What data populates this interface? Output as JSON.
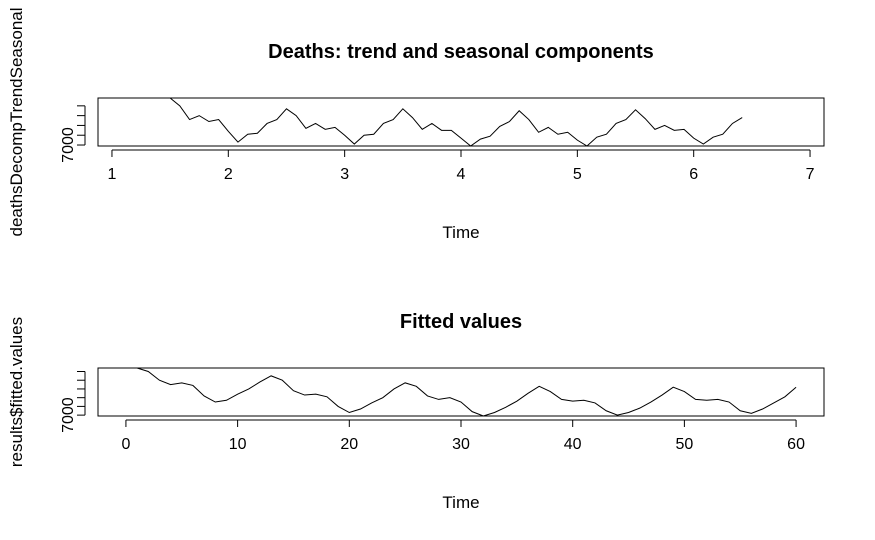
{
  "chart_data": [
    {
      "type": "line",
      "title": "Deaths: trend and seasonal components",
      "xlabel": "Time",
      "ylabel": "deathsDecompTrendSeasonal",
      "xlim": [
        0.88,
        7.12
      ],
      "ylim": [
        6950,
        9400
      ],
      "xticks": [
        1,
        2,
        3,
        4,
        5,
        6,
        7
      ],
      "xtick_labels": [
        "1",
        "2",
        "3",
        "4",
        "5",
        "6",
        "7"
      ],
      "yticks": [
        7000,
        7500,
        8000,
        8500,
        9000,
        9500
      ],
      "ytick_labels": [
        "7000",
        "",
        "",
        "",
        "",
        ""
      ],
      "series": [
        {
          "x": [
            1.5,
            1.583,
            1.667,
            1.75,
            1.833,
            1.917,
            2.0,
            2.083,
            2.167,
            2.25,
            2.333,
            2.417,
            2.5,
            2.583,
            2.667,
            2.75,
            2.833,
            2.917,
            3.0,
            3.083,
            3.167,
            3.25,
            3.333,
            3.417,
            3.5,
            3.583,
            3.667,
            3.75,
            3.833,
            3.917,
            4.0,
            4.083,
            4.167,
            4.25,
            4.333,
            4.417,
            4.5,
            4.583,
            4.667,
            4.75,
            4.833,
            4.917,
            5.0,
            5.083,
            5.167,
            5.25,
            5.333,
            5.417,
            5.5,
            5.583,
            5.667,
            5.75,
            5.833,
            5.917,
            6.0,
            6.083,
            6.167,
            6.25,
            6.333,
            6.417
          ],
          "values": [
            9400,
            9000,
            8300,
            8500,
            8200,
            8300,
            7700,
            7150,
            7550,
            7600,
            8100,
            8300,
            8850,
            8500,
            7850,
            8100,
            7800,
            7900,
            7500,
            7050,
            7500,
            7550,
            8100,
            8300,
            8850,
            8400,
            7800,
            8100,
            7750,
            7750,
            7350,
            6950,
            7300,
            7450,
            7950,
            8200,
            8750,
            8300,
            7650,
            7900,
            7550,
            7650,
            7250,
            6950,
            7400,
            7550,
            8100,
            8300,
            8800,
            8350,
            7800,
            8000,
            7750,
            7800,
            7350,
            7050,
            7400,
            7550,
            8100,
            8400
          ]
        }
      ]
    },
    {
      "type": "line",
      "title": "Fitted values",
      "xlabel": "Time",
      "ylabel": "results$fitted.values",
      "xlim": [
        -2.5,
        62.5
      ],
      "ylim": [
        6950,
        9700
      ],
      "xticks": [
        0,
        10,
        20,
        30,
        40,
        50,
        60
      ],
      "xtick_labels": [
        "0",
        "10",
        "20",
        "30",
        "40",
        "50",
        "60"
      ],
      "yticks": [
        7000,
        7500,
        8000,
        8500,
        9000,
        9500
      ],
      "ytick_labels": [
        "7000",
        "",
        "",
        "",
        "",
        ""
      ],
      "series": [
        {
          "x": [
            1,
            2,
            3,
            4,
            5,
            6,
            7,
            8,
            9,
            10,
            11,
            12,
            13,
            14,
            15,
            16,
            17,
            18,
            19,
            20,
            21,
            22,
            23,
            24,
            25,
            26,
            27,
            28,
            29,
            30,
            31,
            32,
            33,
            34,
            35,
            36,
            37,
            38,
            39,
            40,
            41,
            42,
            43,
            44,
            45,
            46,
            47,
            48,
            49,
            50,
            51,
            52,
            53,
            54,
            55,
            56,
            57,
            58,
            59,
            60
          ],
          "values": [
            9700,
            9500,
            9000,
            8750,
            8850,
            8700,
            8100,
            7750,
            7850,
            8200,
            8500,
            8900,
            9250,
            9000,
            8400,
            8150,
            8200,
            8050,
            7500,
            7150,
            7350,
            7700,
            8000,
            8500,
            8850,
            8650,
            8100,
            7900,
            8000,
            7750,
            7200,
            6950,
            7150,
            7450,
            7800,
            8250,
            8650,
            8350,
            7900,
            7800,
            7850,
            7700,
            7250,
            7000,
            7150,
            7400,
            7750,
            8150,
            8600,
            8350,
            7900,
            7850,
            7900,
            7750,
            7250,
            7100,
            7350,
            7700,
            8050,
            8600
          ]
        }
      ]
    }
  ]
}
